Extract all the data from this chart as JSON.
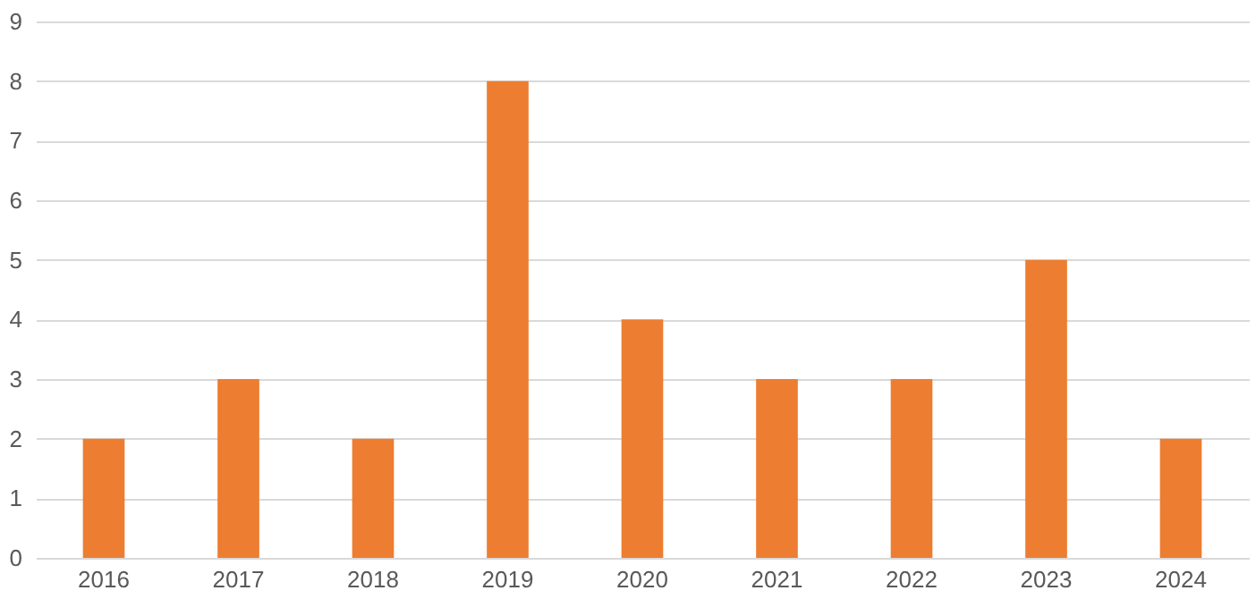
{
  "chart_data": {
    "type": "bar",
    "categories": [
      "2016",
      "2017",
      "2018",
      "2019",
      "2020",
      "2021",
      "2022",
      "2023",
      "2024"
    ],
    "values": [
      2,
      3,
      2,
      8,
      4,
      3,
      3,
      5,
      2
    ],
    "color": "#ed7d31",
    "ylim": [
      0,
      9
    ],
    "yticks": [
      0,
      1,
      2,
      3,
      4,
      5,
      6,
      7,
      8,
      9
    ],
    "grid": "y"
  }
}
